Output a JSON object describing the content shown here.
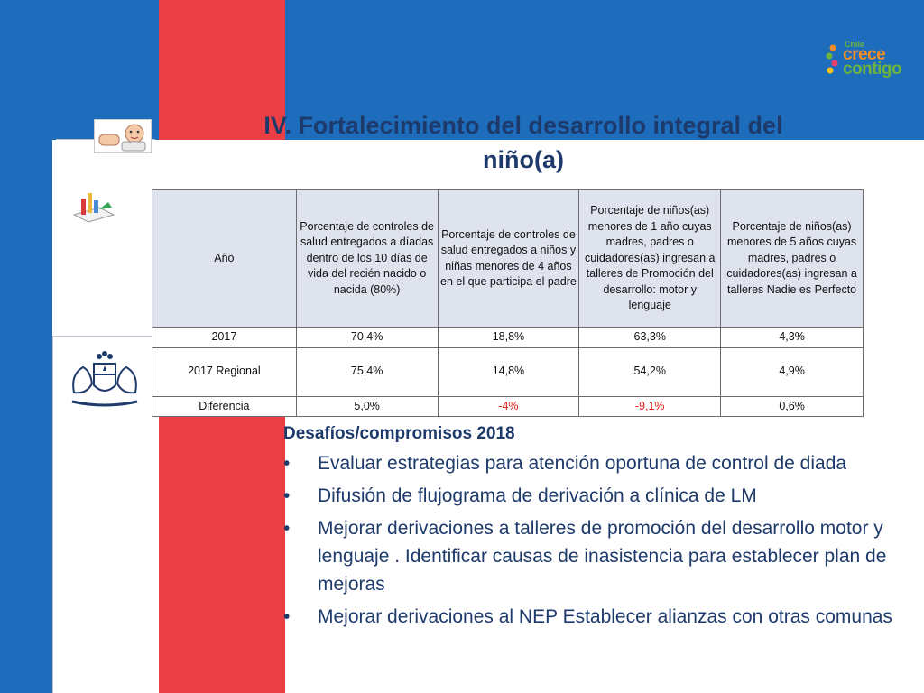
{
  "logo": {
    "country": "Chile",
    "line1": "crece",
    "line2": "contigo"
  },
  "title": "IV. Fortalecimiento del desarrollo integral del niño(a)",
  "table": {
    "headers": [
      "Año",
      "Porcentaje de controles de salud entregados a díadas dentro de los 10 días de vida del recién nacido o nacida (80%)",
      "Porcentaje de controles de salud entregados a niños y niñas menores de 4 años en el que participa el padre",
      "Porcentaje de niños(as) menores de 1 año cuyas madres, padres o cuidadores(as) ingresan a talleres de Promoción del desarrollo: motor y lenguaje",
      "Porcentaje de niños(as) menores de 5 años cuyas madres, padres o cuidadores(as) ingresan a talleres Nadie es Perfecto"
    ],
    "rows": [
      [
        "2017",
        "70,4%",
        "18,8%",
        "63,3%",
        "4,3%"
      ],
      [
        "2017 Regional",
        "75,4%",
        "14,8%",
        "54,2%",
        "4,9%"
      ],
      [
        "Diferencia",
        "5,0%",
        "-4%",
        "-9,1%",
        "0,6%"
      ]
    ]
  },
  "section": {
    "title": "Desafíos/compromisos 2018",
    "bullet_char": "•",
    "items": [
      "Evaluar estrategias para atención oportuna de control de diada",
      "Difusión de flujograma de derivación a clínica de LM",
      "Mejorar derivaciones a talleres de promoción del desarrollo motor y lenguaje . Identificar causas de inasistencia para establecer plan de mejoras",
      "Mejorar derivaciones al NEP Establecer alianzas con otras comunas"
    ]
  },
  "colors": {
    "blue": "#1e6cbc",
    "red": "#ea3f44",
    "title": "#1d3a6b",
    "negative": "#e0201b"
  },
  "icons": [
    "baby-icon",
    "chart-icon",
    "coat-of-arms-icon",
    "crece-contigo-logo"
  ]
}
